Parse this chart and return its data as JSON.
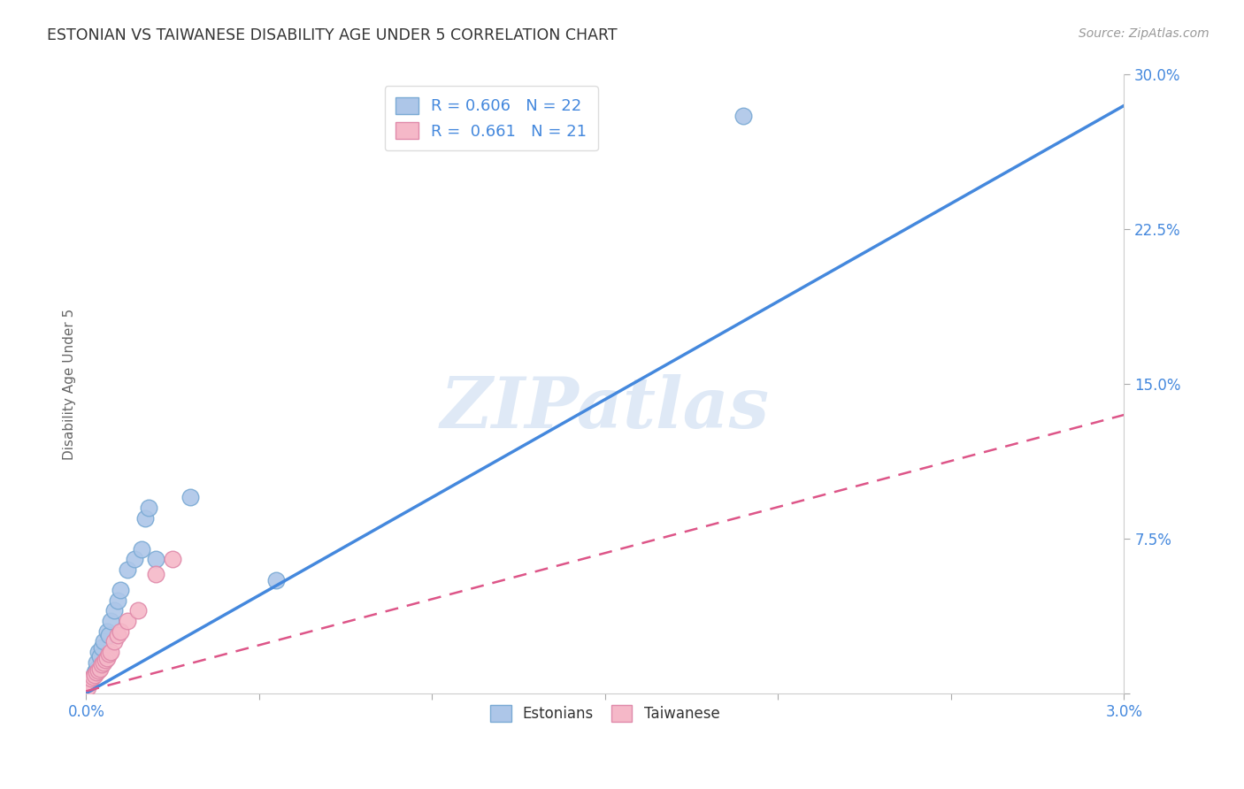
{
  "title": "ESTONIAN VS TAIWANESE DISABILITY AGE UNDER 5 CORRELATION CHART",
  "source": "Source: ZipAtlas.com",
  "ylabel": "Disability Age Under 5",
  "xlim": [
    0.0,
    0.03
  ],
  "ylim": [
    0.0,
    0.3
  ],
  "xtick_positions": [
    0.0,
    0.005,
    0.01,
    0.015,
    0.02,
    0.025,
    0.03
  ],
  "xtick_labels": [
    "0.0%",
    "",
    "",
    "",
    "",
    "",
    "3.0%"
  ],
  "ytick_positions": [
    0.0,
    0.075,
    0.15,
    0.225,
    0.3
  ],
  "ytick_labels": [
    "",
    "7.5%",
    "15.0%",
    "22.5%",
    "30.0%"
  ],
  "grid_color": "#cccccc",
  "background_color": "#ffffff",
  "estonian_color": "#adc6e8",
  "estonian_edge_color": "#7aaad4",
  "taiwanese_color": "#f5b8c8",
  "taiwanese_edge_color": "#e08aaa",
  "estonian_line_color": "#4488dd",
  "taiwanese_line_color": "#dd5588",
  "R_estonian": 0.606,
  "N_estonian": 22,
  "R_taiwanese": 0.661,
  "N_taiwanese": 21,
  "legend_label_estonian": "Estonians",
  "legend_label_taiwanese": "Taiwanese",
  "watermark_text": "ZIPatlas",
  "title_color": "#333333",
  "axis_label_color": "#666666",
  "tick_color": "#4488dd",
  "legend_text_color": "#4488dd",
  "estonian_line_x": [
    0.0,
    0.03
  ],
  "estonian_line_y": [
    0.0,
    0.285
  ],
  "taiwanese_line_x": [
    0.0,
    0.03
  ],
  "taiwanese_line_y": [
    0.001,
    0.135
  ],
  "estonian_x": [
    0.00025,
    0.0003,
    0.0003,
    0.00035,
    0.0004,
    0.00045,
    0.0005,
    0.0006,
    0.00065,
    0.0007,
    0.0008,
    0.0009,
    0.001,
    0.0012,
    0.0014,
    0.0016,
    0.0017,
    0.0018,
    0.002,
    0.003,
    0.0055,
    0.019
  ],
  "estonian_y": [
    0.01,
    0.012,
    0.015,
    0.02,
    0.018,
    0.022,
    0.025,
    0.03,
    0.028,
    0.035,
    0.04,
    0.045,
    0.05,
    0.06,
    0.065,
    0.07,
    0.085,
    0.09,
    0.065,
    0.095,
    0.055,
    0.28
  ],
  "taiwanese_x": [
    5e-05,
    0.0001,
    0.00015,
    0.0002,
    0.00025,
    0.0003,
    0.00035,
    0.0004,
    0.00045,
    0.0005,
    0.00055,
    0.0006,
    0.00065,
    0.0007,
    0.0008,
    0.0009,
    0.001,
    0.0012,
    0.0015,
    0.002,
    0.0025
  ],
  "taiwanese_y": [
    0.003,
    0.005,
    0.007,
    0.008,
    0.009,
    0.01,
    0.011,
    0.012,
    0.014,
    0.015,
    0.016,
    0.017,
    0.019,
    0.02,
    0.025,
    0.028,
    0.03,
    0.035,
    0.04,
    0.058,
    0.065
  ]
}
